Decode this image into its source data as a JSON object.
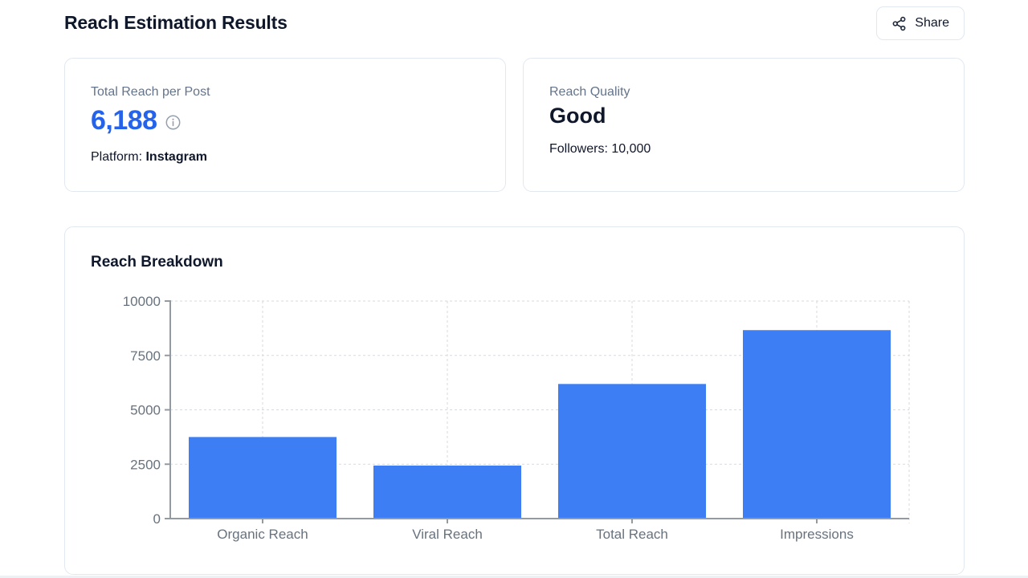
{
  "page": {
    "title": "Reach Estimation Results"
  },
  "header": {
    "share_label": "Share"
  },
  "cards": {
    "total_reach": {
      "label": "Total Reach per Post",
      "value": "6,188",
      "platform_label": "Platform:",
      "platform_value": "Instagram"
    },
    "quality": {
      "label": "Reach Quality",
      "value": "Good",
      "followers": "Followers: 10,000"
    }
  },
  "chart": {
    "title": "Reach Breakdown"
  },
  "chart_data": {
    "type": "bar",
    "title": "Reach Breakdown",
    "categories": [
      "Organic Reach",
      "Viral Reach",
      "Total Reach",
      "Impressions"
    ],
    "values": [
      3750,
      2438,
      6188,
      8663
    ],
    "xlabel": "",
    "ylabel": "",
    "ylim": [
      0,
      10000
    ],
    "yticks": [
      0,
      2500,
      5000,
      7500,
      10000
    ],
    "ytick_labels": [
      "0",
      "2500",
      "5000",
      "7500",
      "10000"
    ],
    "grid": true,
    "legend": false,
    "bar_color": "#3d7ef5",
    "grid_color": "#d8dadd",
    "axis_color": "#949aa2",
    "tick_label_color": "#68727d"
  },
  "colors": {
    "accent_blue": "#2563eb",
    "card_border": "#e2e8f0",
    "muted_text": "#64748b",
    "dark_text": "#0f172a"
  }
}
